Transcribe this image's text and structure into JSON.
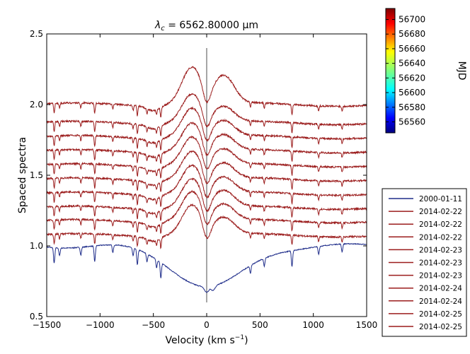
{
  "chart_data": {
    "type": "line",
    "title_prefix": "λ",
    "title_subscript": "c",
    "title_suffix": " = 6562.80000 μm",
    "xlabel": "Velocity (km s",
    "xlabel_exponent": "−1",
    "xlabel_close": ")",
    "ylabel": "Spaced spectra",
    "xlim": [
      -1500,
      1500
    ],
    "ylim": [
      0.5,
      2.5
    ],
    "xticks": [
      -1500,
      -1000,
      -500,
      0,
      500,
      1000,
      1500
    ],
    "xtick_labels": [
      "−1500",
      "−1000",
      "−500",
      "0",
      "500",
      "1000",
      "1500"
    ],
    "yticks": [
      0.5,
      1.0,
      1.5,
      2.0,
      2.5
    ],
    "ytick_labels": [
      "0.5",
      "1.0",
      "1.5",
      "2.0",
      "2.5"
    ],
    "vertical_line": {
      "x": 0,
      "y_range": [
        0.6,
        2.4
      ],
      "color": "#888888"
    },
    "colorbar": {
      "label": "MJD",
      "ticks": [
        56560,
        56580,
        56600,
        56620,
        56640,
        56660,
        56680,
        56700
      ],
      "range": [
        56545,
        56715
      ],
      "colormap": "jet"
    },
    "legend": {
      "placement": "right"
    },
    "absorption_lines_kms": [
      -1430,
      -1380,
      -1180,
      -1050,
      -880,
      -690,
      -650,
      -560,
      -470,
      -430,
      410,
      540,
      800,
      1050,
      1270
    ],
    "series": [
      {
        "name": "2000-01-11",
        "color": "#1f2d8a",
        "offset": 1.0,
        "profile": "absorption",
        "peak_blue": null,
        "peak_red": null
      },
      {
        "name": "2014-02-22",
        "color": "#9b1c1c",
        "offset": 1.075,
        "profile": "emission",
        "peak_blue": 1.295,
        "peak_red": 1.195
      },
      {
        "name": "2014-02-22",
        "color": "#9b1c1c",
        "offset": 1.175,
        "profile": "emission",
        "peak_blue": 1.39,
        "peak_red": 1.29
      },
      {
        "name": "2014-02-22",
        "color": "#9b1c1c",
        "offset": 1.27,
        "profile": "emission",
        "peak_blue": 1.48,
        "peak_red": 1.385
      },
      {
        "name": "2014-02-23",
        "color": "#9b1c1c",
        "offset": 1.37,
        "profile": "emission",
        "peak_blue": 1.575,
        "peak_red": 1.48
      },
      {
        "name": "2014-02-23",
        "color": "#9b1c1c",
        "offset": 1.47,
        "profile": "emission",
        "peak_blue": 1.675,
        "peak_red": 1.58
      },
      {
        "name": "2014-02-23",
        "color": "#9b1c1c",
        "offset": 1.57,
        "profile": "emission",
        "peak_blue": 1.775,
        "peak_red": 1.68
      },
      {
        "name": "2014-02-24",
        "color": "#9b1c1c",
        "offset": 1.67,
        "profile": "emission",
        "peak_blue": 1.875,
        "peak_red": 1.78
      },
      {
        "name": "2014-02-24",
        "color": "#9b1c1c",
        "offset": 1.77,
        "profile": "emission",
        "peak_blue": 1.98,
        "peak_red": 1.88
      },
      {
        "name": "2014-02-25",
        "color": "#9b1c1c",
        "offset": 1.87,
        "profile": "emission",
        "peak_blue": 2.08,
        "peak_red": 1.98
      },
      {
        "name": "2014-02-25",
        "color": "#9b1c1c",
        "offset": 2.0,
        "profile": "emission",
        "peak_blue": 2.27,
        "peak_red": 2.2
      }
    ]
  }
}
